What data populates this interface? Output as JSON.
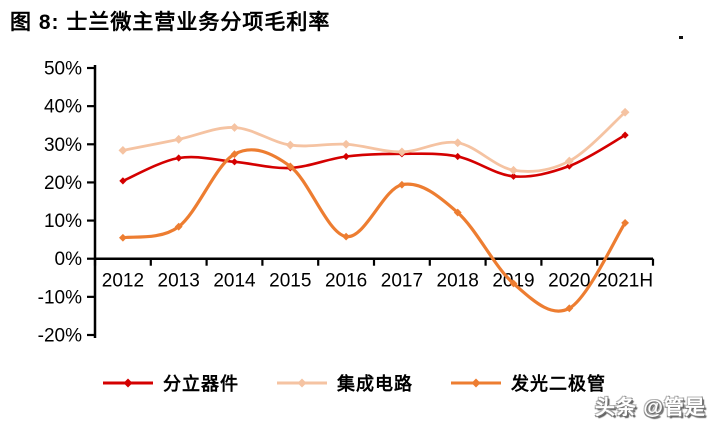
{
  "title": "图 8: 士兰微主营业务分项毛利率",
  "watermark": "头条 @管是",
  "chart_data": {
    "type": "line",
    "title": "士兰微主营业务分项毛利率",
    "categories": [
      "2012",
      "2013",
      "2014",
      "2015",
      "2016",
      "2017",
      "2018",
      "2019",
      "2020",
      "2021H"
    ],
    "series": [
      {
        "name": "分立器件",
        "color": "#D40000",
        "values": [
          20.4,
          26.4,
          25.4,
          23.8,
          26.8,
          27.5,
          26.8,
          21.6,
          24.3,
          32.4
        ]
      },
      {
        "name": "集成电路",
        "color": "#F5C3A2",
        "values": [
          28.4,
          31.3,
          34.4,
          29.8,
          30.0,
          28.0,
          30.4,
          23.2,
          25.6,
          38.4
        ]
      },
      {
        "name": "发光二极管",
        "color": "#ED7D31",
        "values": [
          5.5,
          8.4,
          27.4,
          24.2,
          5.8,
          19.4,
          12.1,
          -6.5,
          -13.0,
          9.4
        ]
      }
    ],
    "ylim": [
      -20,
      50
    ],
    "ytick_step": 10,
    "ytick_labels": [
      "50%",
      "40%",
      "30%",
      "20%",
      "10%",
      "0%",
      "-10%",
      "-20%"
    ],
    "xlabel": "",
    "ylabel": "",
    "grid": false,
    "line_style": "smooth",
    "marker": "diamond",
    "legend_position": "bottom",
    "axis_color": "#000000"
  }
}
